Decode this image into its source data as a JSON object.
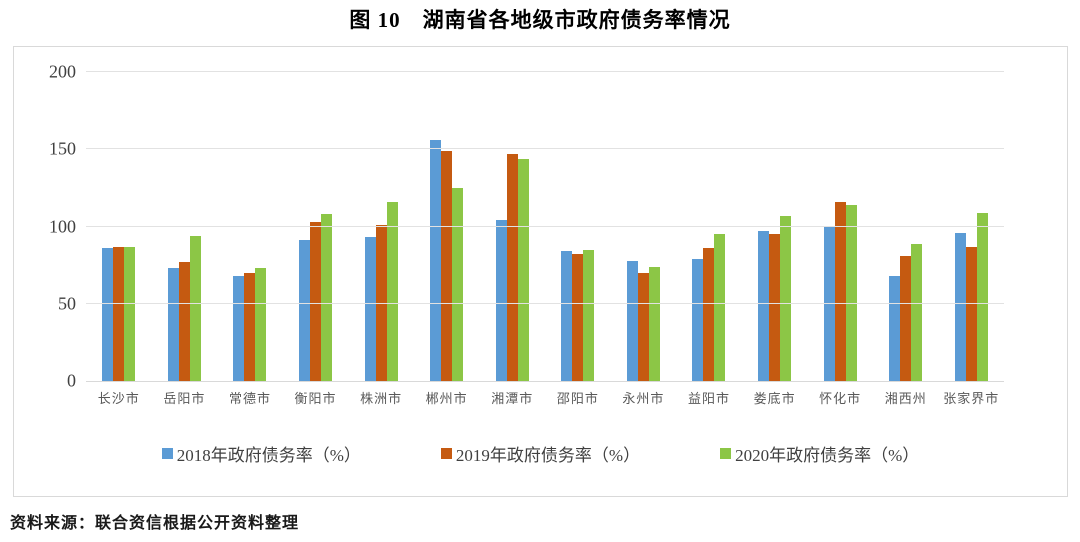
{
  "title": "图 10　湖南省各地级市政府债务率情况",
  "source_note": "资料来源：联合资信根据公开资料整理",
  "chart_data": {
    "type": "bar",
    "title": "图 10　湖南省各地级市政府债务率情况",
    "categories": [
      "长沙市",
      "岳阳市",
      "常德市",
      "衡阳市",
      "株洲市",
      "郴州市",
      "湘潭市",
      "邵阳市",
      "永州市",
      "益阳市",
      "娄底市",
      "怀化市",
      "湘西州",
      "张家界市"
    ],
    "series": [
      {
        "name": "2018年政府债务率（%）",
        "color": "#5B9BD5",
        "values": [
          86,
          73,
          68,
          91,
          93,
          156,
          104,
          84,
          78,
          79,
          97,
          100,
          68,
          96
        ]
      },
      {
        "name": "2019年政府债务率（%）",
        "color": "#C55A11",
        "values": [
          87,
          77,
          70,
          103,
          101,
          149,
          147,
          82,
          70,
          86,
          95,
          116,
          81,
          87
        ]
      },
      {
        "name": "2020年政府债务率（%）",
        "color": "#8CC646",
        "values": [
          87,
          94,
          73,
          108,
          116,
          125,
          144,
          85,
          74,
          95,
          107,
          114,
          89,
          109
        ]
      }
    ],
    "xlabel": "",
    "ylabel": "",
    "ylim": [
      0,
      200
    ],
    "yticks": [
      0,
      50,
      100,
      150,
      200
    ],
    "grid": true,
    "legend_position": "bottom"
  }
}
